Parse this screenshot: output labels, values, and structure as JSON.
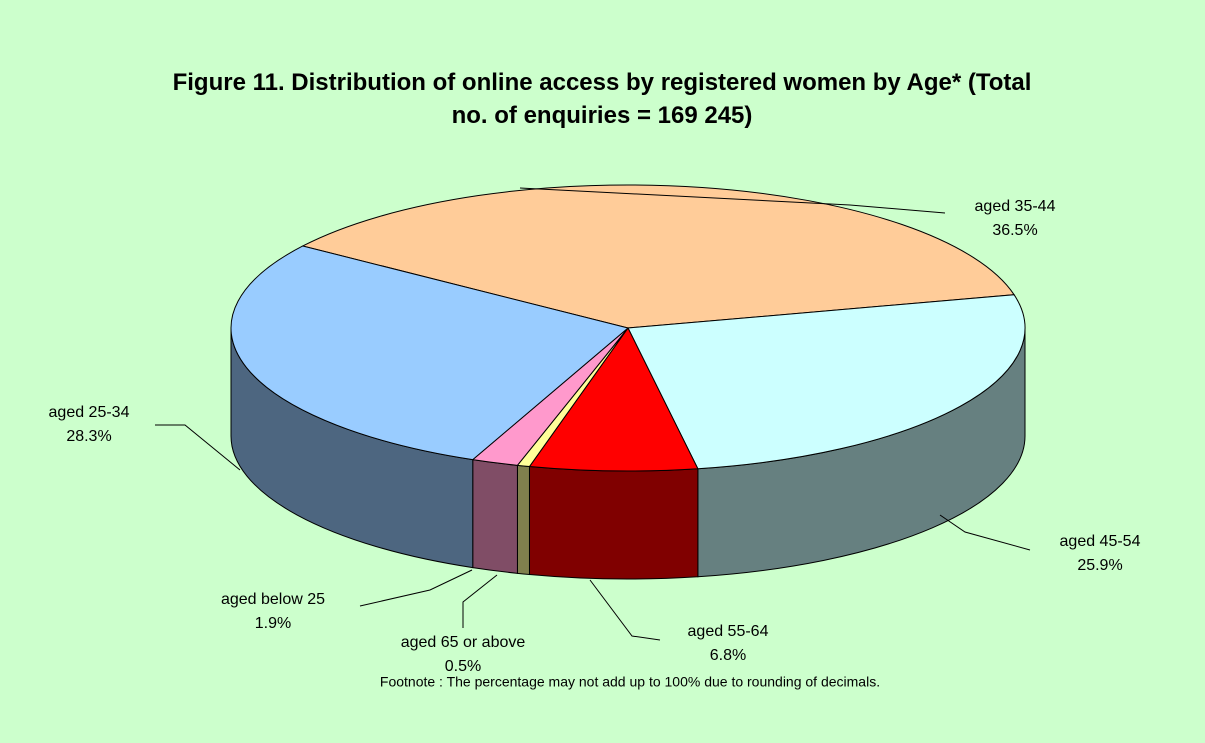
{
  "chart_data": {
    "type": "pie3d",
    "title": "Figure 11.  Distribution of online access by registered women by Age* (Total no. of enquiries = 169 245)",
    "categories": [
      "aged 35-44",
      "aged 45-54",
      "aged 55-64",
      "aged 65 or above",
      "aged below 25",
      "aged 25-34"
    ],
    "values": [
      36.5,
      25.9,
      6.8,
      0.5,
      1.9,
      28.3
    ],
    "value_labels": [
      "36.5%",
      "25.9%",
      "6.8%",
      "0.5%",
      "1.9%",
      "28.3%"
    ],
    "colors": [
      "#ffcc99",
      "#ccffff",
      "#ff0000",
      "#ffff99",
      "#ff99cc",
      "#99ccff"
    ],
    "side_colors": [
      "#806650",
      "#668080",
      "#800000",
      "#80804d",
      "#804d66",
      "#4d6680"
    ],
    "footnote": "Footnote : The percentage may not add up to 100% due to rounding of decimals."
  }
}
